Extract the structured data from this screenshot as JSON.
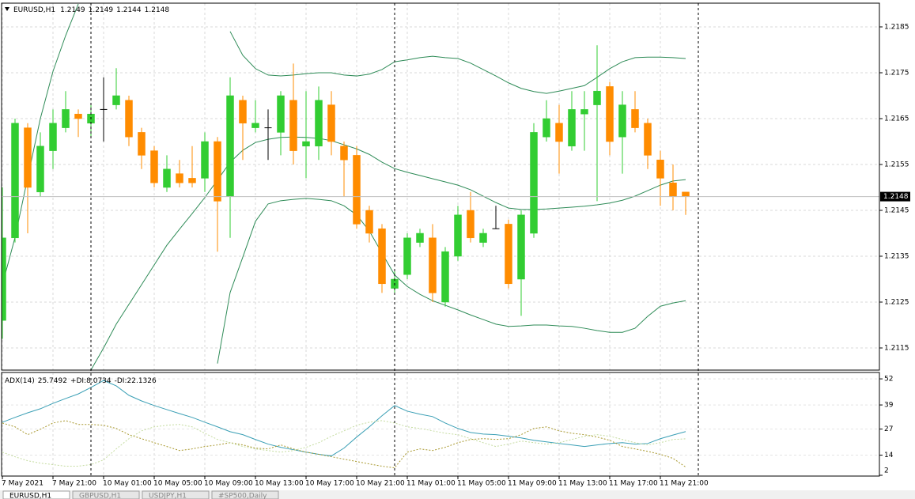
{
  "chart_data": [
    {
      "type": "candlestick",
      "title": "EURUSD,H1",
      "categories": [
        "7 May 2021",
        null,
        null,
        null,
        "7 May 21:00",
        null,
        null,
        null,
        "10 May 01:00",
        null,
        null,
        null,
        "10 May 05:00",
        null,
        null,
        null,
        "10 May 09:00",
        null,
        null,
        null,
        "10 May 13:00",
        null,
        null,
        null,
        "10 May 17:00",
        null,
        null,
        null,
        "10 May 21:00",
        null,
        null,
        null,
        "11 May 01:00",
        null,
        null,
        null,
        "11 May 05:00",
        null,
        null,
        null,
        "11 May 09:00",
        null,
        null,
        null,
        "11 May 13:00",
        null,
        null,
        null,
        "11 May 17:00",
        null,
        null,
        null,
        "11 May 21:00",
        null,
        null
      ],
      "open": [
        1.2121,
        1.2139,
        1.2163,
        1.2149,
        1.2158,
        1.2163,
        1.2166,
        1.2164,
        1.2167,
        1.2168,
        1.2169,
        1.2162,
        1.2158,
        1.215,
        1.2153,
        1.2152,
        1.2152,
        1.216,
        1.2148,
        1.2169,
        1.2163,
        1.2163,
        1.2162,
        1.2169,
        1.2159,
        1.2159,
        1.2168,
        1.2159,
        1.2157,
        1.2145,
        1.2141,
        1.2128,
        1.2131,
        1.2138,
        1.2139,
        1.2125,
        1.2135,
        1.2145,
        1.2138,
        1.2141,
        1.2142,
        1.213,
        1.214,
        1.2161,
        1.2164,
        1.2159,
        1.2166,
        1.2168,
        1.2172,
        1.2161,
        1.2167,
        1.2164,
        1.2156,
        1.2151,
        1.2149
      ],
      "high": [
        1.215,
        1.2165,
        1.2164,
        1.2162,
        1.2167,
        1.2171,
        1.2167,
        1.2168,
        1.2174,
        1.2176,
        1.217,
        1.2163,
        1.2159,
        1.2157,
        1.2156,
        1.2159,
        1.2162,
        1.2161,
        1.2174,
        1.217,
        1.2169,
        1.2167,
        1.2171,
        1.2177,
        1.2171,
        1.2172,
        1.2171,
        1.216,
        1.2159,
        1.2146,
        1.2142,
        1.2132,
        1.214,
        1.2141,
        1.2142,
        1.2137,
        1.2146,
        1.2149,
        1.2141,
        1.2146,
        1.2143,
        1.2145,
        1.2164,
        1.2169,
        1.2168,
        1.2171,
        1.2171,
        1.2181,
        1.2173,
        1.2171,
        1.2171,
        1.2165,
        1.2158,
        1.2155,
        1.2149
      ],
      "low": [
        1.2117,
        1.2138,
        1.214,
        1.2148,
        1.2154,
        1.2162,
        1.2161,
        1.2161,
        1.216,
        1.2167,
        1.2159,
        1.2154,
        1.215,
        1.2149,
        1.215,
        1.215,
        1.2149,
        1.2136,
        1.2139,
        1.2156,
        1.2162,
        1.2156,
        1.2157,
        1.2155,
        1.2152,
        1.2156,
        1.2157,
        1.2148,
        1.2141,
        1.2138,
        1.2127,
        1.2127,
        1.213,
        1.2137,
        1.2125,
        1.2124,
        1.2134,
        1.2138,
        1.2137,
        1.2141,
        1.2128,
        1.2122,
        1.2139,
        1.216,
        1.2153,
        1.2158,
        1.2158,
        1.2147,
        1.2157,
        1.2153,
        1.2162,
        1.2154,
        1.2146,
        1.2145,
        1.2144
      ],
      "close": [
        1.2139,
        1.2164,
        1.215,
        1.2159,
        1.2164,
        1.2167,
        1.2165,
        1.2166,
        1.2167,
        1.217,
        1.2161,
        1.2157,
        1.2151,
        1.2154,
        1.2151,
        1.2151,
        1.216,
        1.2147,
        1.217,
        1.2164,
        1.2164,
        1.2163,
        1.217,
        1.2158,
        1.216,
        1.2169,
        1.216,
        1.2156,
        1.2142,
        1.214,
        1.2129,
        1.213,
        1.2139,
        1.214,
        1.2127,
        1.2136,
        1.2144,
        1.2139,
        1.214,
        1.2141,
        1.2129,
        1.2144,
        1.2162,
        1.2165,
        1.216,
        1.2167,
        1.2167,
        1.2171,
        1.216,
        1.2168,
        1.2163,
        1.2157,
        1.2152,
        1.2148,
        1.2148
      ],
      "up_color": "#32cd32",
      "down_color": "#ff8c00",
      "doji_color": "#000000",
      "bands": {
        "color": "#2e8b57",
        "upper": [
          1.21288,
          1.21391,
          1.21521,
          1.2165,
          1.21753,
          1.21831,
          1.219,
          null,
          null,
          null,
          null,
          null,
          null,
          null,
          null,
          null,
          null,
          null,
          1.2184,
          1.21788,
          1.21759,
          1.21745,
          1.21743,
          1.21745,
          1.21748,
          1.2175,
          1.2175,
          1.21745,
          1.21743,
          1.21747,
          1.21757,
          1.21774,
          1.21778,
          1.21783,
          1.21786,
          1.21783,
          1.21781,
          1.21771,
          1.21757,
          1.21743,
          1.21728,
          1.21716,
          1.21709,
          1.21705,
          1.2171,
          1.21716,
          1.21722,
          1.2174,
          1.21759,
          1.21774,
          1.21783,
          1.21784,
          1.21784,
          1.21783,
          1.21781
        ],
        "middle": [
          null,
          null,
          null,
          null,
          null,
          null,
          null,
          1.21102,
          1.2115,
          1.21202,
          1.21245,
          1.21288,
          1.21331,
          1.21374,
          1.21409,
          1.21443,
          1.21478,
          1.21516,
          1.21555,
          1.21581,
          1.21598,
          1.21605,
          1.21609,
          1.2161,
          1.21609,
          1.21607,
          1.21602,
          1.21593,
          1.21584,
          1.21572,
          1.21555,
          1.21541,
          1.21533,
          1.21526,
          1.21519,
          1.21512,
          1.21505,
          1.21495,
          1.21481,
          1.21467,
          1.21455,
          1.21452,
          1.21452,
          1.21453,
          1.21455,
          1.21457,
          1.21459,
          1.21462,
          1.21466,
          1.21472,
          1.21481,
          1.21493,
          1.21505,
          1.21514,
          1.21517
        ],
        "lower": [
          null,
          null,
          null,
          null,
          null,
          null,
          null,
          null,
          null,
          null,
          null,
          null,
          null,
          null,
          null,
          null,
          null,
          1.21116,
          1.21271,
          1.21348,
          1.21426,
          1.21464,
          1.21471,
          1.21474,
          1.21476,
          1.21474,
          1.21471,
          1.2146,
          1.2144,
          1.21405,
          1.21357,
          1.21309,
          1.21284,
          1.21267,
          1.21253,
          1.21243,
          1.21233,
          1.21222,
          1.21212,
          1.21202,
          1.21197,
          1.21198,
          1.212,
          1.212,
          1.21198,
          1.21197,
          1.21193,
          1.21188,
          1.21184,
          1.21184,
          1.21193,
          1.21219,
          1.21241,
          1.21248,
          1.21253
        ]
      },
      "ylim": [
        1.211,
        1.219
      ],
      "yticks": [
        1.2185,
        1.2175,
        1.2165,
        1.2155,
        1.2145,
        1.2135,
        1.2125,
        1.2115
      ],
      "grid": true
    },
    {
      "type": "line",
      "title": "ADX(14)",
      "series": [
        {
          "color": "#3a9fb5",
          "dashed": false,
          "values": [
            30.4,
            32.8,
            35.1,
            37.1,
            39.8,
            42.2,
            44.5,
            47.7,
            51.2,
            48.5,
            43.8,
            41.0,
            38.7,
            36.7,
            34.7,
            32.8,
            30.4,
            28.1,
            25.7,
            24.2,
            21.8,
            19.5,
            17.9,
            16.7,
            15.5,
            14.4,
            13.6,
            17.5,
            23.0,
            28.1,
            33.6,
            38.7,
            35.9,
            34.4,
            33.2,
            30.0,
            27.3,
            25.3,
            24.5,
            24.2,
            23.4,
            22.6,
            21.4,
            20.6,
            19.8,
            19.1,
            18.3,
            19.1,
            19.8,
            20.2,
            19.5,
            19.8,
            22.2,
            24.0,
            25.7492
          ]
        },
        {
          "name": "+DI:",
          "color": "#a8982e",
          "dashed": true,
          "values": [
            30.0,
            28.1,
            24.2,
            26.9,
            30.0,
            31.2,
            29.3,
            29.3,
            28.9,
            27.3,
            24.2,
            22.2,
            20.2,
            18.3,
            16.3,
            17.1,
            18.3,
            19.1,
            20.2,
            19.1,
            17.5,
            17.1,
            19.1,
            17.1,
            15.5,
            14.4,
            13.2,
            12.0,
            10.8,
            9.6,
            8.5,
            7.7,
            15.5,
            17.1,
            16.3,
            17.9,
            20.2,
            21.8,
            22.2,
            21.8,
            22.2,
            24.2,
            27.3,
            28.1,
            26.1,
            24.9,
            24.2,
            23.0,
            21.4,
            18.3,
            17.1,
            15.9,
            14.4,
            12.4,
            8.0734
          ]
        },
        {
          "name": "-DI:",
          "color": "#c5dca0",
          "dashed": true,
          "values": [
            15.5,
            13.2,
            11.2,
            10.0,
            9.3,
            8.5,
            8.5,
            9.3,
            11.6,
            17.1,
            22.2,
            26.1,
            28.1,
            28.9,
            29.3,
            28.1,
            24.9,
            21.8,
            20.2,
            18.3,
            17.1,
            16.3,
            15.5,
            16.3,
            17.9,
            20.2,
            23.4,
            26.1,
            28.9,
            30.4,
            31.2,
            30.0,
            28.1,
            27.3,
            26.1,
            24.9,
            24.2,
            22.2,
            20.2,
            18.3,
            19.5,
            21.0,
            20.2,
            19.5,
            20.2,
            21.8,
            23.4,
            24.2,
            23.4,
            21.8,
            20.2,
            19.1,
            20.2,
            21.8,
            22.1326
          ]
        }
      ],
      "ylim": [
        2,
        54
      ],
      "yticks": [
        52,
        39,
        27,
        14,
        2
      ],
      "grid": true
    }
  ],
  "tabs": [
    "EURUSD,H1",
    "GBPUSD,H1",
    "USDJPY,H1",
    "#SP500,Daily"
  ]
}
